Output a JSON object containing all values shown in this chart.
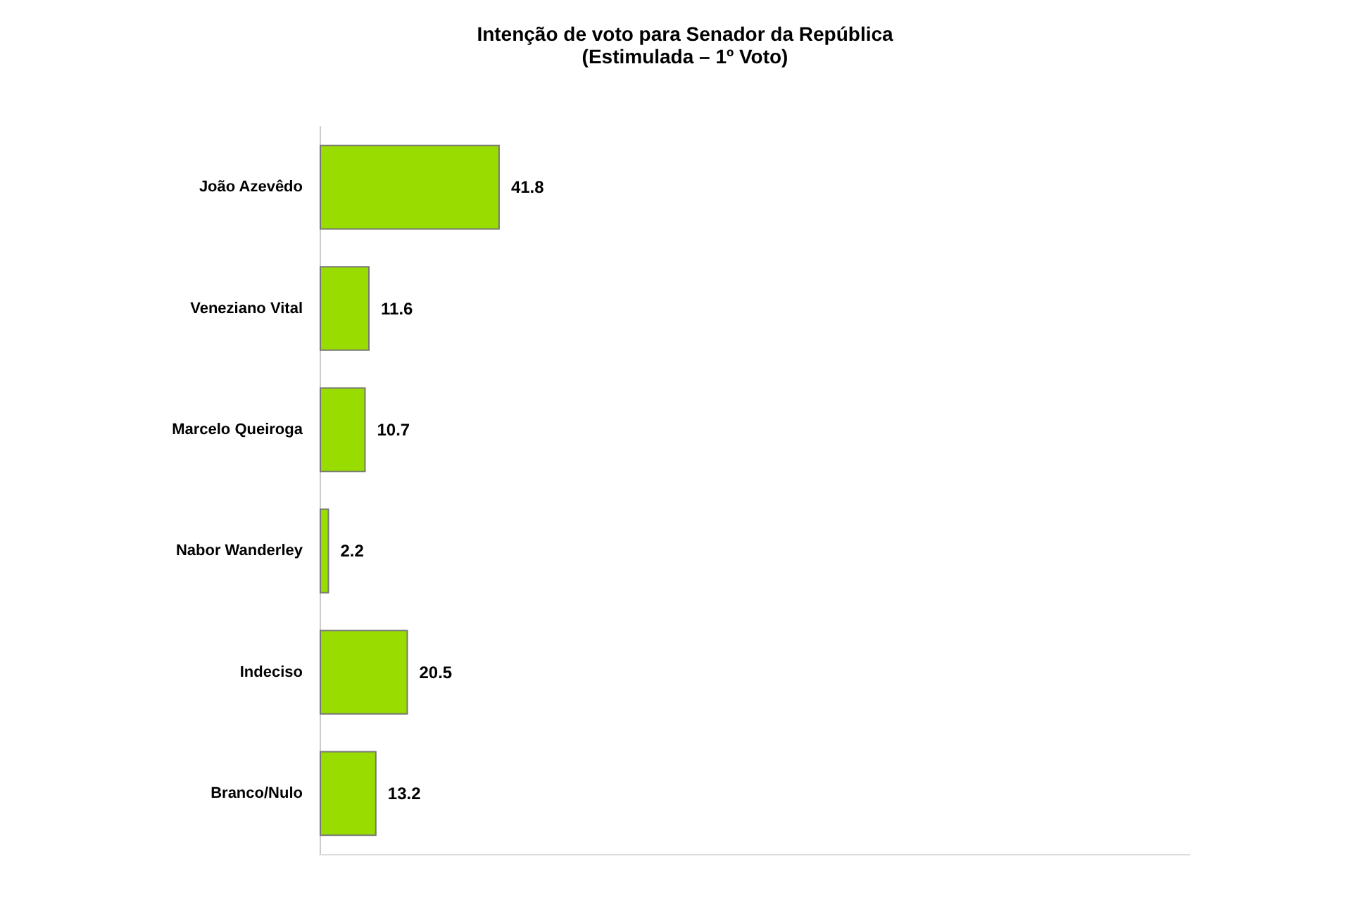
{
  "chart_data": {
    "type": "bar",
    "orientation": "horizontal",
    "title": "Intenção de voto para Senador da República",
    "subtitle": "(Estimulada – 1º Voto)",
    "categories": [
      "João Azevêdo",
      "Veneziano Vital",
      "Marcelo Queiroga",
      "Nabor Wanderley",
      "Indeciso",
      "Branco/Nulo"
    ],
    "values": [
      41.8,
      11.6,
      10.7,
      2.2,
      20.5,
      13.2
    ],
    "color": "#99dd00",
    "data_labels": true
  }
}
